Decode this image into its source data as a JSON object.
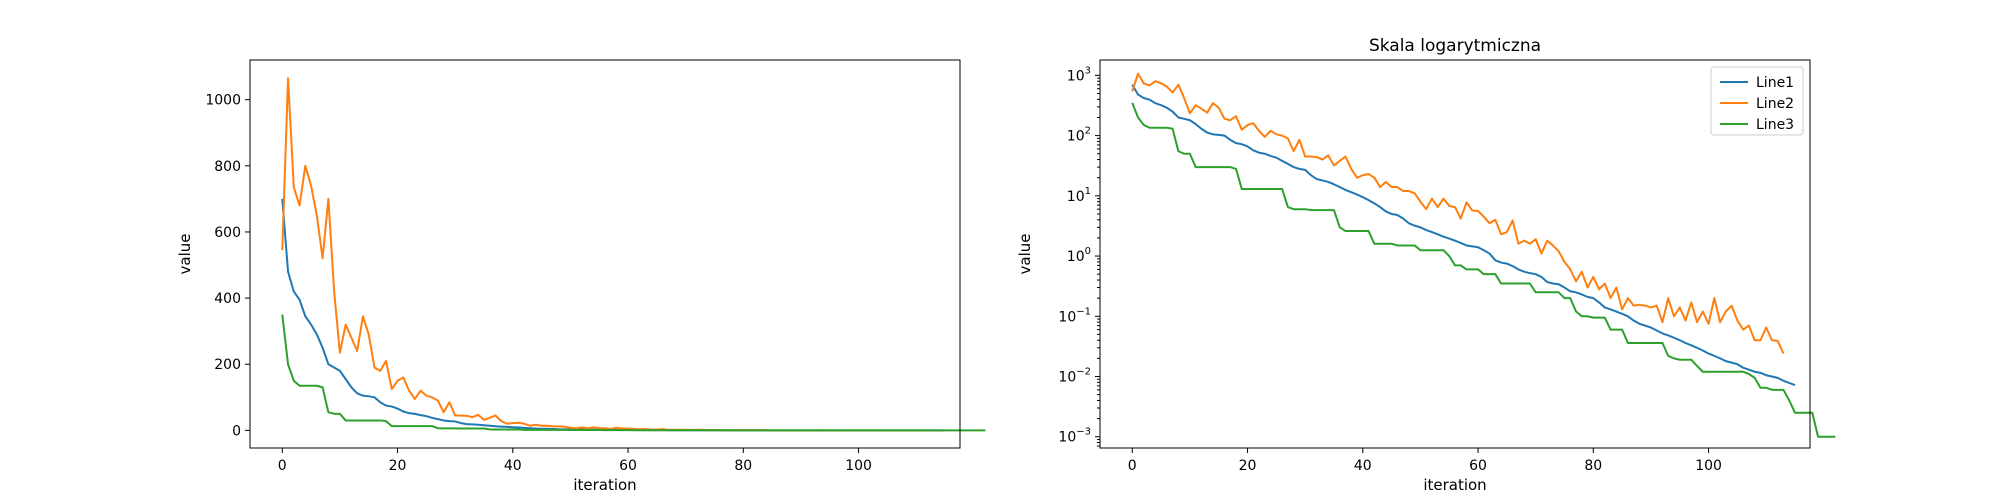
{
  "chart_data": [
    {
      "type": "line",
      "title": "",
      "xlabel": "iteration",
      "ylabel": "value",
      "xlim": [
        -5.6,
        117.6
      ],
      "ylim": [
        -53.3,
        1120
      ],
      "yscale": "linear",
      "x_ticks": [
        0,
        20,
        40,
        60,
        80,
        100
      ],
      "y_ticks": [
        0,
        200,
        400,
        600,
        800,
        1000
      ],
      "grid": false,
      "legend": false,
      "series_ref": true
    },
    {
      "type": "line",
      "title": "Skala logarytmiczna",
      "xlabel": "iteration",
      "ylabel": "value",
      "xlim": [
        -5.6,
        117.6
      ],
      "ylim": [
        0.00065,
        1800
      ],
      "yscale": "log",
      "x_ticks": [
        0,
        20,
        40,
        60,
        80,
        100
      ],
      "y_ticks": [
        0.001,
        0.01,
        0.1,
        1,
        10,
        100,
        1000
      ],
      "y_tick_labels": [
        [
          "10",
          "−3"
        ],
        [
          "10",
          "−2"
        ],
        [
          "10",
          "−1"
        ],
        [
          "10",
          "0"
        ],
        [
          "10",
          "1"
        ],
        [
          "10",
          "2"
        ],
        [
          "10",
          "3"
        ]
      ],
      "grid": false,
      "legend": true,
      "legend_position": "top-right",
      "series_ref": true
    }
  ],
  "series": [
    {
      "name": "Line1",
      "color": "#1f77b4",
      "values": [
        700,
        480,
        420,
        395,
        345,
        320,
        290,
        250,
        200,
        190,
        180,
        155,
        130,
        112,
        105,
        103,
        100,
        85,
        75,
        72,
        66,
        57,
        52,
        50,
        46,
        43,
        38,
        34,
        30,
        28,
        27,
        22,
        19,
        18,
        17,
        15.5,
        14,
        12.5,
        11.5,
        10.5,
        9.5,
        8.5,
        7.5,
        6.5,
        5.5,
        5,
        4.8,
        4.2,
        3.5,
        3.2,
        3,
        2.7,
        2.5,
        2.3,
        2.1,
        1.95,
        1.8,
        1.65,
        1.5,
        1.45,
        1.4,
        1.25,
        1.1,
        0.85,
        0.78,
        0.75,
        0.68,
        0.6,
        0.55,
        0.52,
        0.5,
        0.45,
        0.37,
        0.35,
        0.34,
        0.3,
        0.26,
        0.25,
        0.23,
        0.21,
        0.2,
        0.17,
        0.14,
        0.13,
        0.12,
        0.11,
        0.1,
        0.085,
        0.075,
        0.07,
        0.065,
        0.058,
        0.052,
        0.048,
        0.044,
        0.04,
        0.036,
        0.033,
        0.03,
        0.027,
        0.024,
        0.022,
        0.02,
        0.018,
        0.017,
        0.016,
        0.014,
        0.013,
        0.012,
        0.0115,
        0.0105,
        0.01,
        0.0095,
        0.0085,
        0.0078,
        0.0072
      ]
    },
    {
      "name": "Line2",
      "color": "#ff7f0e",
      "values": [
        545,
        1065,
        735,
        680,
        800,
        740,
        650,
        520,
        700,
        420,
        235,
        320,
        280,
        240,
        345,
        290,
        190,
        180,
        210,
        125,
        150,
        160,
        120,
        95,
        120,
        105,
        100,
        90,
        55,
        85,
        45,
        45,
        44,
        40,
        47,
        32,
        38,
        45,
        28,
        20,
        22,
        23,
        20,
        14,
        17,
        14,
        14,
        12,
        12,
        11,
        8,
        6,
        9,
        6.5,
        9,
        6.8,
        6.5,
        4.2,
        7.8,
        5.7,
        5.6,
        4.5,
        3.5,
        4,
        2.3,
        2.5,
        3.9,
        1.6,
        1.8,
        1.6,
        1.9,
        1.1,
        1.8,
        1.5,
        1.2,
        0.8,
        0.6,
        0.38,
        0.55,
        0.3,
        0.45,
        0.28,
        0.35,
        0.2,
        0.3,
        0.13,
        0.2,
        0.15,
        0.155,
        0.15,
        0.14,
        0.15,
        0.08,
        0.2,
        0.1,
        0.14,
        0.085,
        0.17,
        0.08,
        0.12,
        0.075,
        0.2,
        0.08,
        0.12,
        0.15,
        0.085,
        0.06,
        0.07,
        0.04,
        0.04,
        0.065,
        0.04,
        0.039,
        0.024
      ]
    },
    {
      "name": "Line3",
      "color": "#2ca02c",
      "values": [
        350,
        200,
        150,
        135,
        135,
        135,
        135,
        130,
        55,
        50,
        50,
        30,
        30,
        30,
        30,
        30,
        30,
        30,
        28,
        13,
        13,
        13,
        13,
        13,
        13,
        13,
        13,
        6.5,
        6,
        6,
        6,
        5.8,
        5.8,
        5.8,
        5.8,
        5.8,
        3,
        2.6,
        2.6,
        2.6,
        2.6,
        2.6,
        1.6,
        1.6,
        1.6,
        1.6,
        1.5,
        1.5,
        1.5,
        1.5,
        1.25,
        1.25,
        1.25,
        1.25,
        1.25,
        1.0,
        0.7,
        0.7,
        0.6,
        0.6,
        0.6,
        0.5,
        0.5,
        0.5,
        0.35,
        0.35,
        0.35,
        0.35,
        0.35,
        0.35,
        0.25,
        0.25,
        0.25,
        0.25,
        0.25,
        0.2,
        0.2,
        0.12,
        0.1,
        0.1,
        0.095,
        0.095,
        0.095,
        0.06,
        0.06,
        0.06,
        0.036,
        0.036,
        0.036,
        0.036,
        0.036,
        0.036,
        0.036,
        0.022,
        0.02,
        0.019,
        0.019,
        0.019,
        0.015,
        0.012,
        0.012,
        0.012,
        0.012,
        0.012,
        0.012,
        0.012,
        0.012,
        0.011,
        0.0095,
        0.0065,
        0.0065,
        0.006,
        0.006,
        0.006,
        0.004,
        0.0025,
        0.0025,
        0.0025,
        0.0025,
        0.001,
        0.001,
        0.001,
        0.001
      ]
    }
  ]
}
